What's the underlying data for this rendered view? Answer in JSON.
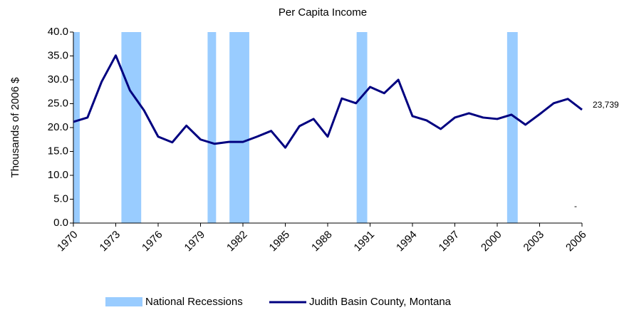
{
  "chart_data": {
    "type": "line",
    "title": "Per Capita Income",
    "y_label": "Thousands of 2006 $",
    "x": [
      1970,
      1971,
      1972,
      1973,
      1974,
      1975,
      1976,
      1977,
      1978,
      1979,
      1980,
      1981,
      1982,
      1983,
      1984,
      1985,
      1986,
      1987,
      1988,
      1989,
      1990,
      1991,
      1992,
      1993,
      1994,
      1995,
      1996,
      1997,
      1998,
      1999,
      2000,
      2001,
      2002,
      2003,
      2004,
      2005,
      2006
    ],
    "series": [
      {
        "name": "Judith Basin County, Montana",
        "color": "#000080",
        "values": [
          21.2,
          22.1,
          29.6,
          35.1,
          27.8,
          23.6,
          18.1,
          16.9,
          20.4,
          17.5,
          16.6,
          17.0,
          17.0,
          18.1,
          19.3,
          15.8,
          20.3,
          21.8,
          18.1,
          26.1,
          25.1,
          28.5,
          27.2,
          30.0,
          22.4,
          21.5,
          19.7,
          22.1,
          23.0,
          22.1,
          21.8,
          22.7,
          20.6,
          22.8,
          25.1,
          26.0,
          23.739
        ],
        "value_labels": [
          null,
          null,
          null,
          null,
          null,
          null,
          null,
          null,
          null,
          null,
          null,
          null,
          null,
          null,
          null,
          null,
          null,
          null,
          null,
          null,
          null,
          null,
          null,
          null,
          null,
          null,
          null,
          null,
          null,
          null,
          null,
          null,
          null,
          null,
          null,
          null,
          "23,739"
        ]
      }
    ],
    "recessions": {
      "name": "National Recessions",
      "color": "#99ccff",
      "spans": [
        [
          1970,
          1970.45
        ],
        [
          1973.4,
          1974.8
        ],
        [
          1979.5,
          1980.1
        ],
        [
          1981.05,
          1982.45
        ],
        [
          1990.05,
          1990.8
        ],
        [
          2000.7,
          2001.45
        ]
      ]
    },
    "annotations": [
      "-"
    ],
    "xlim": [
      1970,
      2006
    ],
    "xticks": [
      1970,
      1973,
      1976,
      1979,
      1982,
      1985,
      1988,
      1991,
      1994,
      1997,
      2000,
      2003,
      2006
    ],
    "ylim": [
      0,
      40
    ],
    "yticks": [
      {
        "value": 0,
        "label": "0.0"
      },
      {
        "value": 5,
        "label": "5.0"
      },
      {
        "value": 10,
        "label": "10.0"
      },
      {
        "value": 15,
        "label": "15.0"
      },
      {
        "value": 20,
        "label": "20.0"
      },
      {
        "value": 25,
        "label": "25.0"
      },
      {
        "value": 30,
        "label": "30.0"
      },
      {
        "value": 35,
        "label": "35.0"
      },
      {
        "value": 40,
        "label": "40.0"
      }
    ],
    "grid": false
  }
}
